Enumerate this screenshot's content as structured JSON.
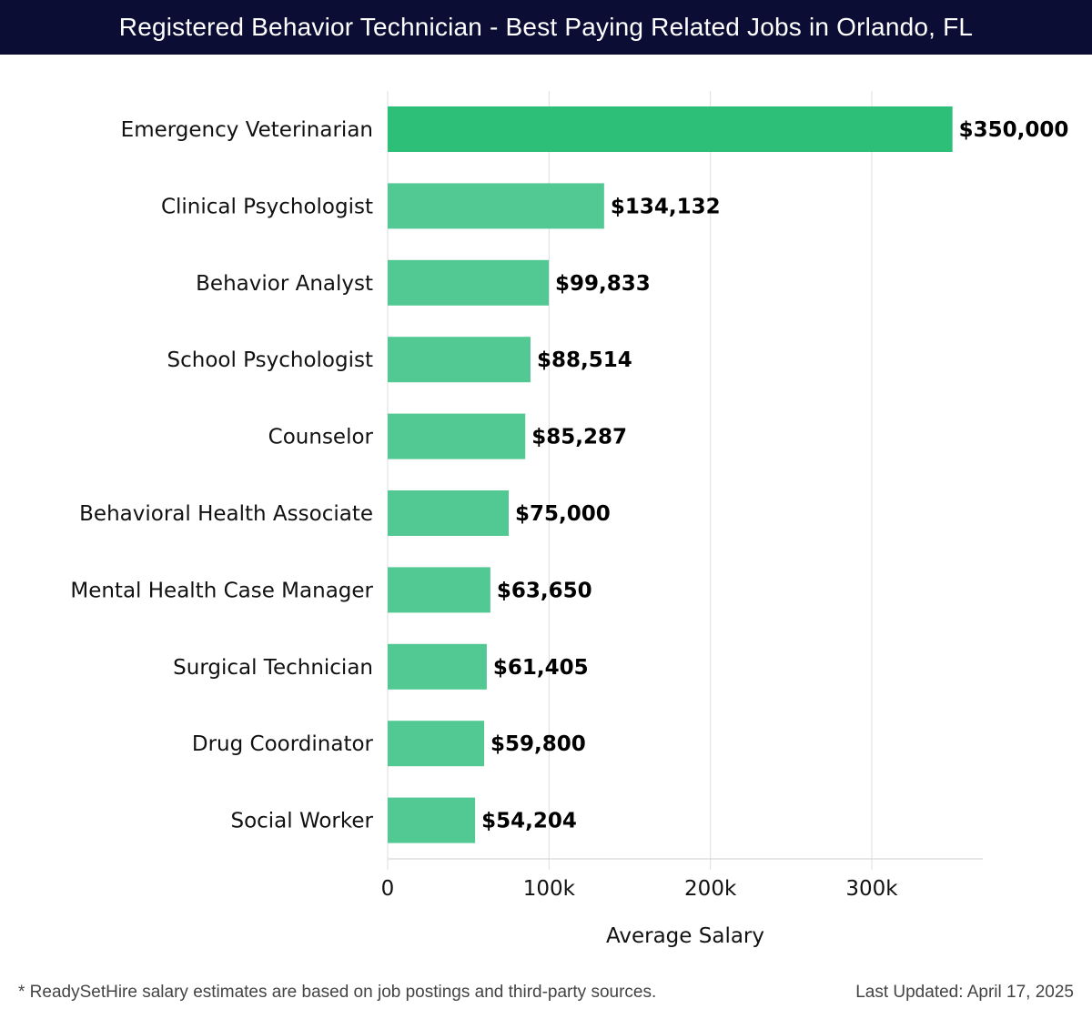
{
  "title": "Registered Behavior Technician - Best Paying Related Jobs in Orlando, FL",
  "footer": {
    "note": "* ReadySetHire salary estimates are based on job postings and third-party sources.",
    "updated": "Last Updated: April 17, 2025"
  },
  "colors": {
    "header_bg": "#0c0d35",
    "top_bar": "#2dbe78",
    "bar": "#52c993",
    "grid": "#dddddd"
  },
  "chart_data": {
    "type": "bar",
    "orientation": "horizontal",
    "title": "Registered Behavior Technician - Best Paying Related Jobs in Orlando, FL",
    "xlabel": "Average Salary",
    "ylabel": "",
    "xlim": [
      0,
      368000
    ],
    "xticks": [
      0,
      100000,
      200000,
      300000
    ],
    "xtick_labels": [
      "0",
      "100k",
      "200k",
      "300k"
    ],
    "grid": true,
    "categories": [
      "Emergency Veterinarian",
      "Clinical Psychologist",
      "Behavior Analyst",
      "School Psychologist",
      "Counselor",
      "Behavioral Health Associate",
      "Mental Health Case Manager",
      "Surgical Technician",
      "Drug Coordinator",
      "Social Worker"
    ],
    "values": [
      350000,
      134132,
      99833,
      88514,
      85287,
      75000,
      63650,
      61405,
      59800,
      54204
    ],
    "value_labels": [
      "$350,000",
      "$134,132",
      "$99,833",
      "$88,514",
      "$85,287",
      "$75,000",
      "$63,650",
      "$61,405",
      "$59,800",
      "$54,204"
    ]
  }
}
